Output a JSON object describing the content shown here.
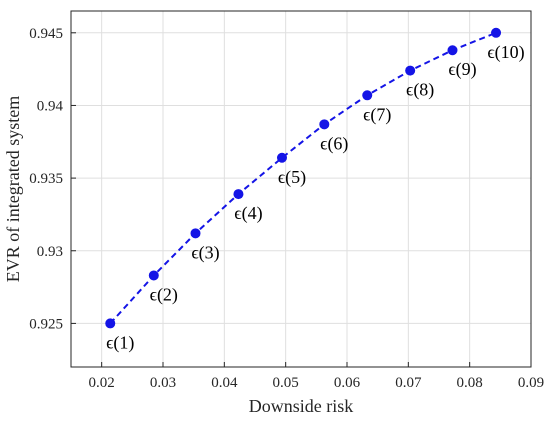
{
  "chart_data": {
    "type": "scatter",
    "title": "",
    "xlabel": "Downside risk",
    "ylabel": "EVR of integrated system",
    "xlim": [
      0.015,
      0.09
    ],
    "ylim": [
      0.922,
      0.9465
    ],
    "xticks": [
      0.02,
      0.03,
      0.04,
      0.05,
      0.06,
      0.07,
      0.08,
      0.09
    ],
    "yticks": [
      0.925,
      0.93,
      0.935,
      0.94,
      0.945
    ],
    "xtick_labels": [
      "0.02",
      "0.03",
      "0.04",
      "0.05",
      "0.06",
      "0.07",
      "0.08",
      "0.09"
    ],
    "ytick_labels": [
      "0.925",
      "0.93",
      "0.935",
      "0.94",
      "0.945"
    ],
    "grid": true,
    "line_style": "dashed",
    "marker": "filled-circle",
    "series": [
      {
        "x": [
          0.0214,
          0.0285,
          0.0353,
          0.0423,
          0.0494,
          0.0563,
          0.0633,
          0.0703,
          0.0772,
          0.0843
        ],
        "y": [
          0.925,
          0.9283,
          0.9312,
          0.9339,
          0.9364,
          0.9387,
          0.9407,
          0.9424,
          0.9438,
          0.945
        ],
        "color": "#1414e6"
      }
    ],
    "annotations": [
      "ϵ(1)",
      "ϵ(2)",
      "ϵ(3)",
      "ϵ(4)",
      "ϵ(5)",
      "ϵ(6)",
      "ϵ(7)",
      "ϵ(8)",
      "ϵ(9)",
      "ϵ(10)"
    ]
  }
}
